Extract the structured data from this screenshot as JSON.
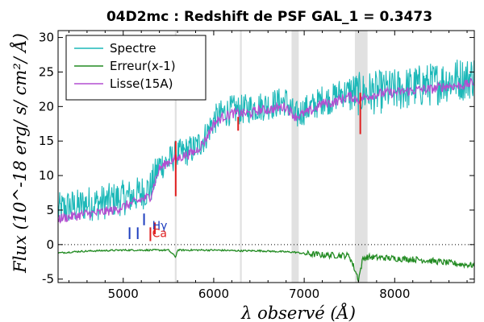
{
  "chart_data": {
    "type": "line",
    "title": "04D2mc : Redshift de PSF GAL_1 = 0.3473",
    "xlabel": "λ observé (Å)",
    "ylabel": "Flux (10^-18 erg/ s/ cm²/ Å)",
    "xlim": [
      4280,
      8880
    ],
    "ylim": [
      -5.5,
      31
    ],
    "x_ticks": [
      5000,
      6000,
      7000,
      8000
    ],
    "y_ticks": [
      -5,
      0,
      5,
      10,
      15,
      20,
      25,
      30
    ],
    "legend_position": "top-left",
    "series": [
      {
        "name": "Spectre",
        "color": "#1cb8b8",
        "x": [
          4300,
          4400,
          4500,
          4600,
          4700,
          4800,
          4900,
          5000,
          5100,
          5200,
          5300,
          5400,
          5500,
          5580,
          5600,
          5700,
          5800,
          5900,
          6000,
          6100,
          6200,
          6300,
          6400,
          6500,
          6600,
          6700,
          6800,
          6900,
          7000,
          7100,
          7200,
          7300,
          7400,
          7500,
          7600,
          7700,
          7800,
          7900,
          8000,
          8100,
          8200,
          8300,
          8400,
          8500,
          8600,
          8700,
          8800,
          8880
        ],
        "y": [
          5.0,
          5.5,
          5.5,
          6.0,
          6.0,
          6.2,
          6.5,
          6.8,
          7.0,
          7.5,
          8.2,
          11.5,
          12.0,
          13.0,
          13.0,
          13.5,
          14.0,
          15.5,
          18.0,
          19.0,
          19.5,
          19.5,
          19.8,
          20.0,
          20.2,
          20.5,
          20.8,
          18.5,
          19.5,
          20.0,
          21.0,
          21.0,
          22.0,
          22.0,
          21.8,
          22.0,
          22.0,
          22.2,
          22.3,
          22.5,
          22.8,
          23.0,
          23.2,
          23.5,
          23.8,
          24.0,
          24.0,
          24.5
        ]
      },
      {
        "name": "Erreur(x-1)",
        "color": "#228b22",
        "x": [
          4300,
          4500,
          4700,
          5000,
          5300,
          5500,
          5580,
          5600,
          6000,
          6300,
          6500,
          6900,
          7000,
          7200,
          7500,
          7600,
          7650,
          7700,
          8000,
          8300,
          8500,
          8700,
          8880
        ],
        "y": [
          -1.2,
          -1.0,
          -0.9,
          -0.8,
          -0.8,
          -0.8,
          -1.8,
          -0.8,
          -0.8,
          -0.9,
          -0.9,
          -1.1,
          -1.3,
          -1.5,
          -1.6,
          -5.0,
          -2.0,
          -1.8,
          -2.0,
          -2.2,
          -2.5,
          -2.8,
          -3.0
        ]
      },
      {
        "name": "Lisse(15A)",
        "color": "#b44fd0",
        "x": [
          4300,
          4400,
          4500,
          4600,
          4700,
          4800,
          4900,
          5000,
          5100,
          5200,
          5300,
          5400,
          5500,
          5600,
          5700,
          5800,
          5900,
          6000,
          6100,
          6200,
          6300,
          6400,
          6500,
          6600,
          6700,
          6800,
          6900,
          7000,
          7100,
          7200,
          7300,
          7400,
          7500,
          7600,
          7700,
          7800,
          7900,
          8000,
          8100,
          8200,
          8300,
          8400,
          8500,
          8600,
          8700,
          8800,
          8880
        ],
        "y": [
          3.8,
          4.0,
          4.2,
          4.5,
          4.5,
          4.8,
          5.0,
          5.5,
          6.0,
          6.5,
          7.0,
          11.0,
          12.0,
          12.5,
          13.0,
          13.5,
          15.0,
          17.5,
          18.5,
          19.0,
          19.0,
          19.0,
          19.5,
          19.5,
          19.8,
          20.0,
          18.5,
          19.0,
          19.5,
          20.5,
          20.5,
          21.0,
          21.5,
          21.0,
          21.5,
          21.8,
          22.0,
          22.0,
          22.2,
          22.3,
          22.5,
          22.5,
          22.8,
          23.0,
          23.0,
          23.2,
          23.5
        ]
      }
    ],
    "reference_line": {
      "y": 0,
      "style": "dotted"
    },
    "shaded_regions": [
      [
        5570,
        5590
      ],
      [
        6290,
        6310
      ],
      [
        6860,
        6940
      ],
      [
        7560,
        7700
      ]
    ],
    "line_markers": [
      {
        "x": 5070,
        "y0": 0.8,
        "y1": 2.5,
        "color": "#1f3fbf",
        "label": ""
      },
      {
        "x": 5160,
        "y0": 0.8,
        "y1": 2.5,
        "color": "#1f3fbf",
        "label": ""
      },
      {
        "x": 5230,
        "y0": 2.8,
        "y1": 4.5,
        "color": "#1f3fbf",
        "label": ""
      },
      {
        "x": 5300,
        "y0": 0.5,
        "y1": 2.5,
        "color": "#e02020",
        "label": ""
      },
      {
        "x": 5350,
        "y0": 1.5,
        "y1": 3.2,
        "color": "#e02020",
        "label": ""
      },
      {
        "x": 5580,
        "y0": 7.0,
        "y1": 15.0,
        "color": "#e02020",
        "label": ""
      },
      {
        "x": 6270,
        "y0": 16.5,
        "y1": 18.5,
        "color": "#e02020",
        "label": ""
      },
      {
        "x": 7620,
        "y0": 16.0,
        "y1": 22.0,
        "color": "#e02020",
        "label": ""
      }
    ],
    "line_labels": [
      {
        "text": "Hγ",
        "x": 5320,
        "y": 2.2,
        "color": "#1f3fbf"
      },
      {
        "text": "Ca",
        "x": 5320,
        "y": 1.1,
        "color": "#e02020"
      }
    ]
  }
}
